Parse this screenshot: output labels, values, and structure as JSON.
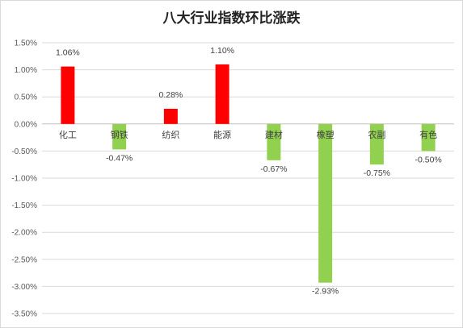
{
  "chart_data": {
    "type": "bar",
    "title": "八大行业指数环比涨跌",
    "categories": [
      "化工",
      "钢铁",
      "纺织",
      "能源",
      "建材",
      "橡塑",
      "农副",
      "有色"
    ],
    "values": [
      1.06,
      -0.47,
      0.28,
      1.1,
      -0.67,
      -2.93,
      -0.75,
      -0.5
    ],
    "value_labels": [
      "1.06%",
      "-0.47%",
      "0.28%",
      "1.10%",
      "-0.67%",
      "-2.93%",
      "-0.75%",
      "-0.50%"
    ],
    "ylim": [
      -3.5,
      1.5
    ],
    "yticks": [
      1.5,
      1.0,
      0.5,
      0.0,
      -0.5,
      -1.0,
      -1.5,
      -2.0,
      -2.5,
      -3.0,
      -3.5
    ],
    "ytick_labels": [
      "1.50%",
      "1.00%",
      "0.50%",
      "0.00%",
      "-0.50%",
      "-1.00%",
      "-1.50%",
      "-2.00%",
      "-2.50%",
      "-3.00%",
      "-3.50%"
    ],
    "xlabel": "",
    "ylabel": "",
    "grid": true,
    "legend": "none",
    "colors": {
      "positive": "#ff0000",
      "negative": "#92d050",
      "grid": "#d9d9d9",
      "axis": "#bfbfbf"
    }
  }
}
